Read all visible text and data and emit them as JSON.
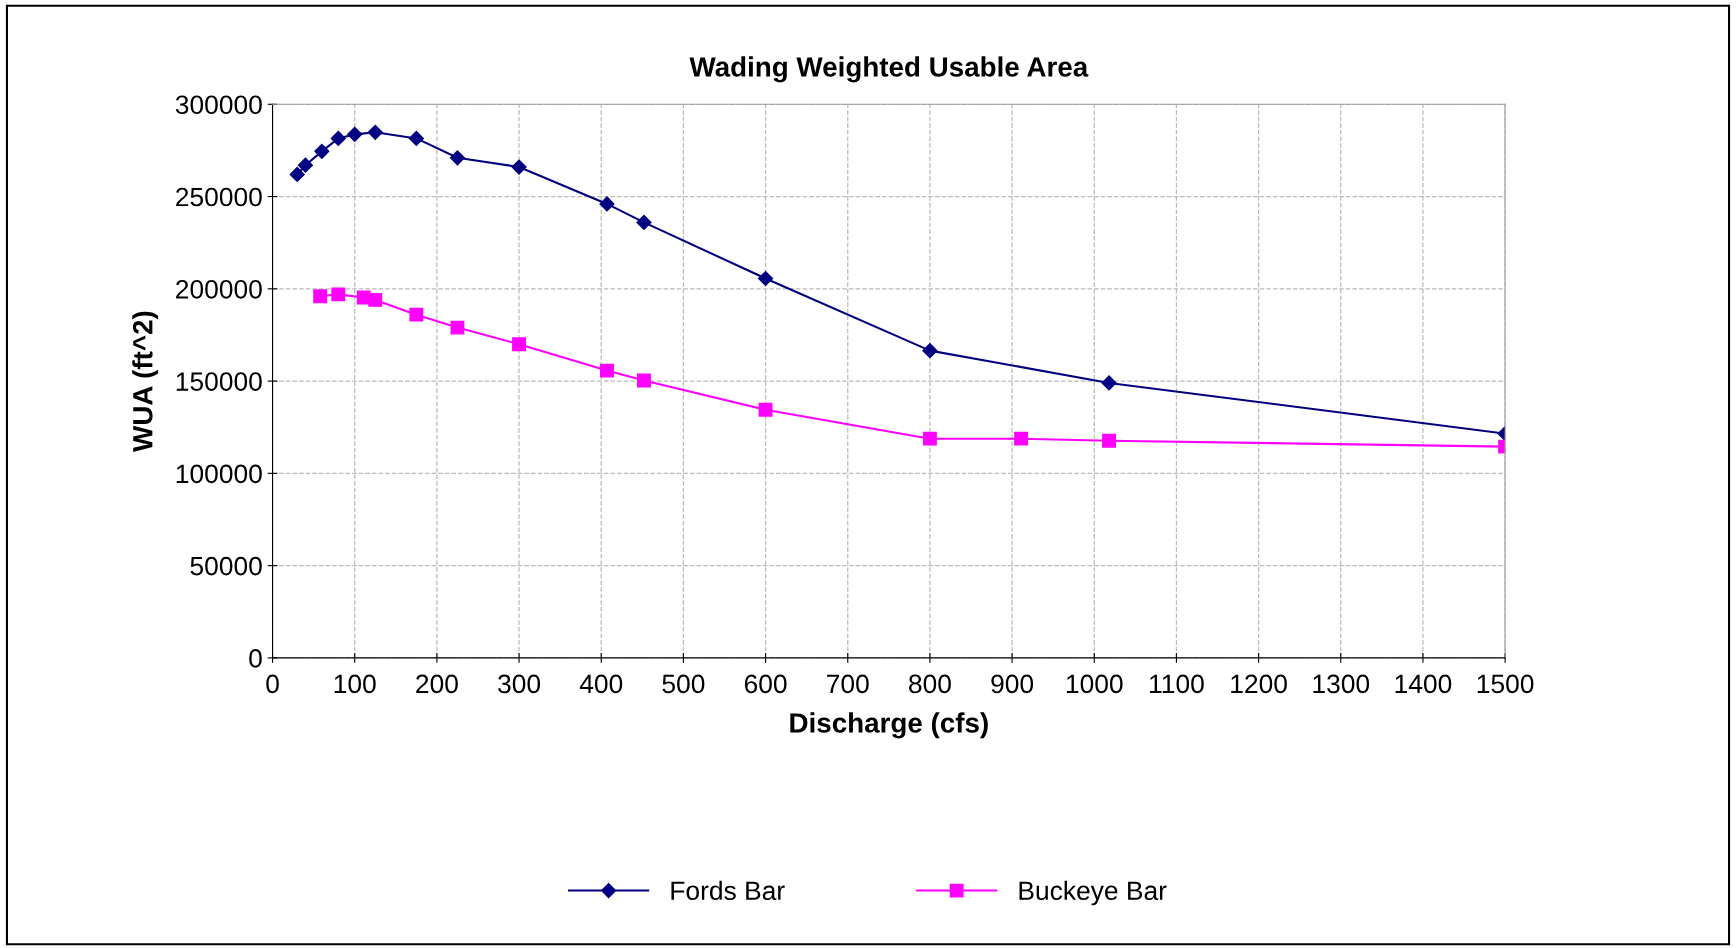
{
  "chart_data": {
    "type": "line",
    "title": "Wading Weighted Usable Area",
    "xlabel": "Discharge (cfs)",
    "ylabel": "WUA (ft^2)",
    "xlim": [
      0,
      1500
    ],
    "xticks": [
      0,
      100,
      200,
      300,
      400,
      500,
      600,
      700,
      800,
      900,
      1000,
      1100,
      1200,
      1300,
      1400,
      1500
    ],
    "ylim": [
      0,
      300000
    ],
    "yticks": [
      0,
      50000,
      100000,
      150000,
      200000,
      250000,
      300000
    ],
    "grid": true,
    "legend": "bottom",
    "line_style": "solid",
    "series": [
      {
        "name": "Fords Bar",
        "color": "#000080",
        "marker": "diamond",
        "x": [
          30,
          40,
          60,
          80,
          100,
          125,
          175,
          225,
          300,
          407,
          452,
          600,
          800,
          1018,
          1500
        ],
        "values": [
          262000,
          267000,
          274500,
          281500,
          283700,
          284800,
          281500,
          271000,
          266000,
          246000,
          236000,
          205600,
          166500,
          149000,
          121500
        ]
      },
      {
        "name": "Buckeye Bar",
        "color": "#ff00ff",
        "marker": "square",
        "x": [
          58,
          80,
          111,
          125,
          175,
          225,
          300,
          407,
          452,
          600,
          800,
          911,
          1018,
          1500
        ],
        "values": [
          196000,
          197000,
          195300,
          194000,
          186000,
          179000,
          170000,
          155700,
          150300,
          134500,
          118800,
          118800,
          117700,
          114500
        ]
      }
    ]
  }
}
